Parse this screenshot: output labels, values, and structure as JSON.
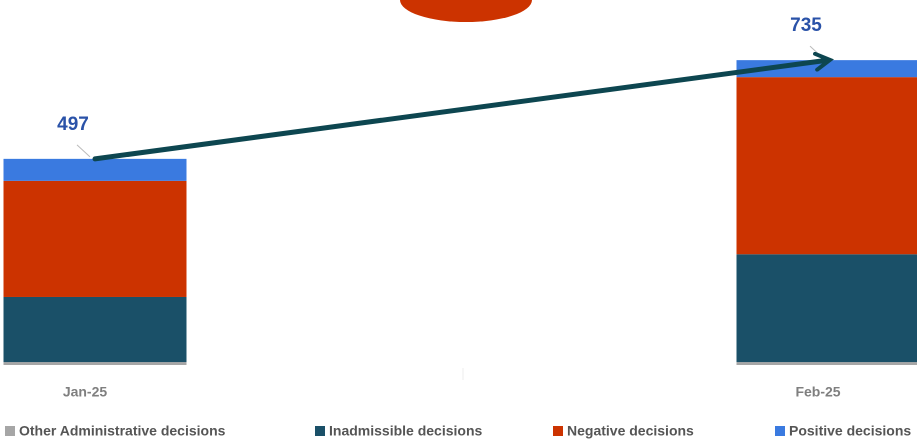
{
  "chart_data": {
    "type": "stacked-bar",
    "categories": [
      "Jan-25",
      "Feb-25"
    ],
    "series": [
      {
        "name": "Other Administrative decisions",
        "color": "#a6a6a6",
        "values": [
          7,
          7
        ]
      },
      {
        "name": "Inadmissible decisions",
        "color": "#1a5068",
        "values": [
          157,
          260
        ]
      },
      {
        "name": "Negative decisions",
        "color": "#cc3300",
        "values": [
          280,
          427
        ]
      },
      {
        "name": "Positive decisions",
        "color": "#3a7ae0",
        "values": [
          53,
          41
        ]
      }
    ],
    "totals": [
      497,
      735
    ],
    "ylim": [
      0,
      880
    ]
  }
}
